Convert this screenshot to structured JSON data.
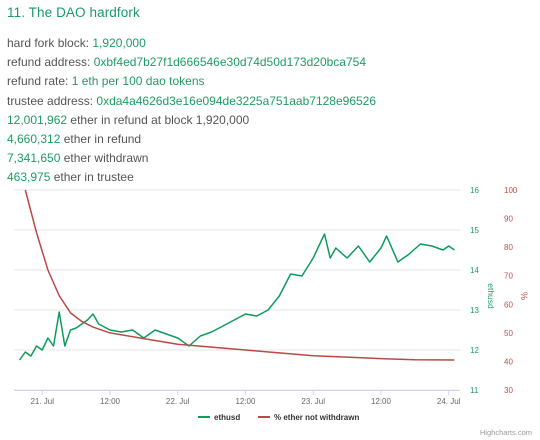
{
  "title": "11. The DAO hardfork",
  "info": [
    {
      "label": "hard fork block: ",
      "value": "1,920,000",
      "suffix": ""
    },
    {
      "label": "refund address: ",
      "value": "0xbf4ed7b27f1d666546e30d74d50d173d20bca754",
      "suffix": ""
    },
    {
      "label": "refund rate: ",
      "value": "1 eth per 100 dao tokens",
      "suffix": ""
    },
    {
      "label": "trustee address: ",
      "value": "0xda4a4626d3e16e094de3225a751aab7128e96526",
      "suffix": ""
    },
    {
      "label": "",
      "value": "12,001,962",
      "suffix": " ether in refund at block 1,920,000"
    },
    {
      "label": "",
      "value": "4,660,312",
      "suffix": " ether in refund"
    },
    {
      "label": "",
      "value": "7,341,650",
      "suffix": " ether withdrawn"
    },
    {
      "label": "",
      "value": "463,975",
      "suffix": " ether in trustee"
    }
  ],
  "colors": {
    "accent": "#1a9a6a",
    "ethusd": "#0d9c5c",
    "pct": "#b94a48",
    "axis_left": "#1f9c64",
    "axis_right": "#c0504d"
  },
  "credits": "Highcharts.com",
  "chart_data": {
    "type": "line",
    "x_axis": {
      "type": "datetime",
      "min": "2016-07-20T19:00",
      "max": "2016-07-24T02:00",
      "ticks": [
        {
          "x": "2016-07-21T00:00",
          "label": "21. Jul"
        },
        {
          "x": "2016-07-21T12:00",
          "label": "12:00"
        },
        {
          "x": "2016-07-22T00:00",
          "label": "22. Jul"
        },
        {
          "x": "2016-07-22T12:00",
          "label": "12:00"
        },
        {
          "x": "2016-07-23T00:00",
          "label": "23. Jul"
        },
        {
          "x": "2016-07-23T12:00",
          "label": "12:00"
        },
        {
          "x": "2016-07-24T00:00",
          "label": "24. Jul"
        }
      ]
    },
    "y_axes": [
      {
        "id": "usd",
        "title": "ethusd",
        "min": 11,
        "max": 16,
        "ticks": [
          11,
          12,
          13,
          14,
          15,
          16
        ],
        "side": "right-inner"
      },
      {
        "id": "pct",
        "title": "%",
        "min": 30,
        "max": 100,
        "ticks": [
          30,
          40,
          50,
          60,
          70,
          80,
          90,
          100
        ],
        "side": "right-outer"
      }
    ],
    "grid": true,
    "legend_position": "bottom-center",
    "series": [
      {
        "name": "ethusd",
        "axis": "usd",
        "points": [
          [
            "2016-07-20T20:00",
            11.75
          ],
          [
            "2016-07-20T21:00",
            11.95
          ],
          [
            "2016-07-20T22:00",
            11.85
          ],
          [
            "2016-07-20T23:00",
            12.1
          ],
          [
            "2016-07-21T00:00",
            12.0
          ],
          [
            "2016-07-21T01:00",
            12.3
          ],
          [
            "2016-07-21T02:00",
            12.1
          ],
          [
            "2016-07-21T03:00",
            12.95
          ],
          [
            "2016-07-21T04:00",
            12.1
          ],
          [
            "2016-07-21T05:00",
            12.5
          ],
          [
            "2016-07-21T06:00",
            12.55
          ],
          [
            "2016-07-21T08:00",
            12.75
          ],
          [
            "2016-07-21T09:00",
            12.9
          ],
          [
            "2016-07-21T10:00",
            12.65
          ],
          [
            "2016-07-21T12:00",
            12.5
          ],
          [
            "2016-07-21T14:00",
            12.45
          ],
          [
            "2016-07-21T16:00",
            12.5
          ],
          [
            "2016-07-21T18:00",
            12.3
          ],
          [
            "2016-07-21T20:00",
            12.5
          ],
          [
            "2016-07-21T22:00",
            12.4
          ],
          [
            "2016-07-22T00:00",
            12.3
          ],
          [
            "2016-07-22T02:00",
            12.1
          ],
          [
            "2016-07-22T04:00",
            12.35
          ],
          [
            "2016-07-22T06:00",
            12.45
          ],
          [
            "2016-07-22T08:00",
            12.6
          ],
          [
            "2016-07-22T10:00",
            12.75
          ],
          [
            "2016-07-22T12:00",
            12.9
          ],
          [
            "2016-07-22T14:00",
            12.85
          ],
          [
            "2016-07-22T16:00",
            13.0
          ],
          [
            "2016-07-22T18:00",
            13.35
          ],
          [
            "2016-07-22T20:00",
            13.9
          ],
          [
            "2016-07-22T22:00",
            13.85
          ],
          [
            "2016-07-23T00:00",
            14.3
          ],
          [
            "2016-07-23T02:00",
            14.9
          ],
          [
            "2016-07-23T03:00",
            14.3
          ],
          [
            "2016-07-23T04:00",
            14.55
          ],
          [
            "2016-07-23T06:00",
            14.3
          ],
          [
            "2016-07-23T08:00",
            14.6
          ],
          [
            "2016-07-23T10:00",
            14.2
          ],
          [
            "2016-07-23T12:00",
            14.55
          ],
          [
            "2016-07-23T13:00",
            14.85
          ],
          [
            "2016-07-23T15:00",
            14.2
          ],
          [
            "2016-07-23T17:00",
            14.4
          ],
          [
            "2016-07-23T19:00",
            14.65
          ],
          [
            "2016-07-23T21:00",
            14.6
          ],
          [
            "2016-07-23T23:00",
            14.5
          ],
          [
            "2016-07-24T00:00",
            14.6
          ],
          [
            "2016-07-24T01:00",
            14.5
          ]
        ]
      },
      {
        "name": "% ether not withdrawn",
        "axis": "pct",
        "points": [
          [
            "2016-07-20T21:00",
            100
          ],
          [
            "2016-07-20T23:00",
            85
          ],
          [
            "2016-07-21T01:00",
            72
          ],
          [
            "2016-07-21T03:00",
            63
          ],
          [
            "2016-07-21T05:00",
            57
          ],
          [
            "2016-07-21T07:00",
            54
          ],
          [
            "2016-07-21T09:00",
            52
          ],
          [
            "2016-07-21T12:00",
            50
          ],
          [
            "2016-07-21T15:00",
            49
          ],
          [
            "2016-07-21T18:00",
            48
          ],
          [
            "2016-07-22T00:00",
            46
          ],
          [
            "2016-07-22T06:00",
            45
          ],
          [
            "2016-07-22T12:00",
            44
          ],
          [
            "2016-07-22T18:00",
            43
          ],
          [
            "2016-07-23T00:00",
            42
          ],
          [
            "2016-07-23T06:00",
            41.5
          ],
          [
            "2016-07-23T12:00",
            41
          ],
          [
            "2016-07-23T18:00",
            40.6
          ],
          [
            "2016-07-24T01:00",
            40.5
          ]
        ]
      }
    ]
  }
}
